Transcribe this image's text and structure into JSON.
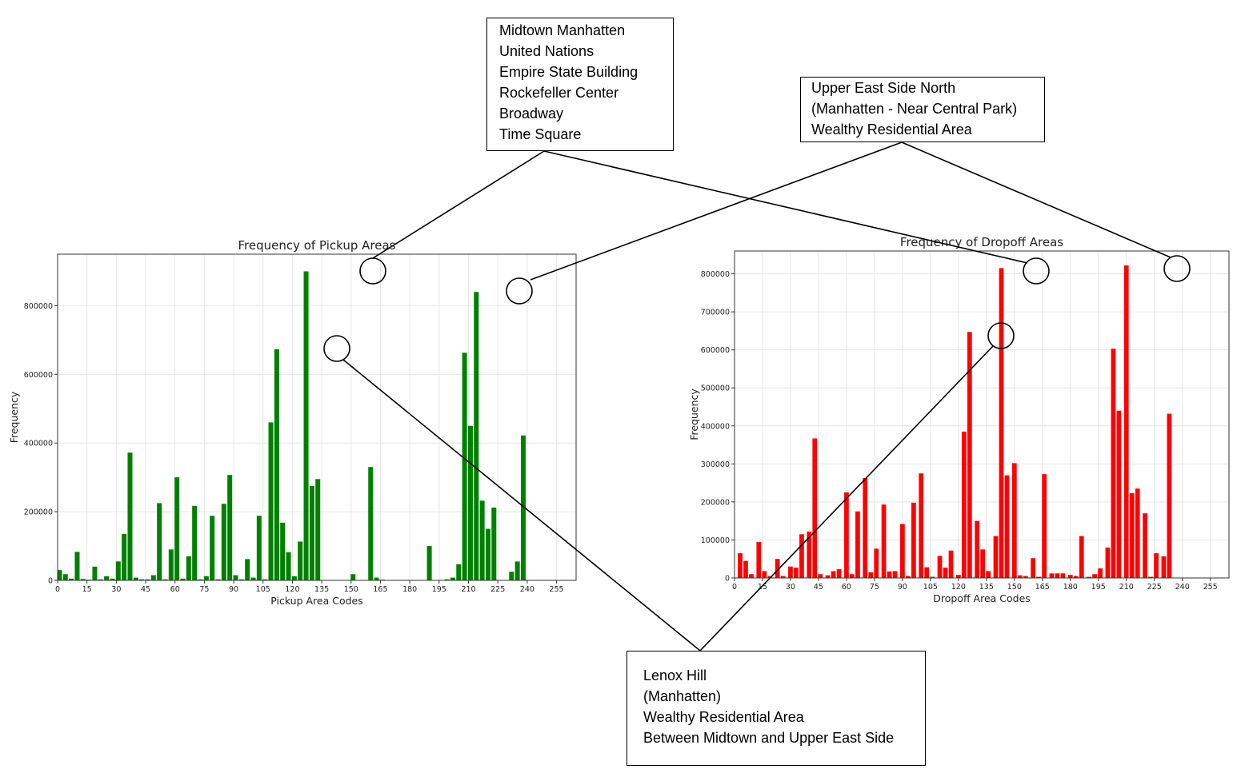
{
  "chart_data": [
    {
      "type": "bar",
      "title": "Frequency of Pickup Areas",
      "xlabel": "Pickup Area Codes",
      "ylabel": "Frequency",
      "xlim": [
        0,
        265
      ],
      "ylim": [
        0,
        950000
      ],
      "xticks": [
        0,
        15,
        30,
        45,
        60,
        75,
        90,
        105,
        120,
        135,
        150,
        165,
        180,
        195,
        210,
        225,
        240,
        255
      ],
      "yticks": [
        0,
        200000,
        400000,
        600000,
        800000
      ],
      "grid": true,
      "color": "#008000",
      "x": [
        1,
        4,
        7,
        10,
        13,
        16,
        19,
        22,
        25,
        28,
        31,
        34,
        37,
        40,
        43,
        46,
        49,
        52,
        55,
        58,
        61,
        64,
        67,
        70,
        73,
        76,
        79,
        82,
        85,
        88,
        91,
        94,
        97,
        100,
        103,
        106,
        109,
        112,
        115,
        118,
        121,
        124,
        127,
        130,
        133,
        136,
        139,
        142,
        145,
        148,
        151,
        154,
        157,
        160,
        163,
        166,
        169,
        172,
        175,
        178,
        181,
        184,
        187,
        190,
        193,
        196,
        199,
        202,
        205,
        208,
        211,
        214,
        217,
        220,
        223,
        226,
        229,
        232,
        235,
        238,
        241,
        244,
        247,
        250,
        253,
        256,
        259,
        262
      ],
      "values": [
        30000,
        18000,
        5000,
        83000,
        4000,
        2000,
        40000,
        3000,
        12000,
        5000,
        55000,
        135000,
        372000,
        8000,
        3000,
        3000,
        15000,
        225000,
        3000,
        90000,
        300000,
        5000,
        70000,
        217000,
        3000,
        12000,
        188000,
        3000,
        223000,
        307000,
        15000,
        3000,
        62000,
        8000,
        188000,
        3000,
        460000,
        673000,
        168000,
        82000,
        12000,
        113000,
        900000,
        275000,
        295000,
        0,
        0,
        0,
        0,
        0,
        18000,
        0,
        0,
        330000,
        8000,
        2000,
        0,
        0,
        0,
        0,
        0,
        0,
        0,
        100000,
        0,
        0,
        3000,
        8000,
        47000,
        663000,
        450000,
        840000,
        232000,
        150000,
        212000,
        0,
        0,
        25000,
        55000,
        422000,
        0,
        0,
        0,
        0,
        0,
        0,
        0,
        0
      ]
    },
    {
      "type": "bar",
      "title": "Frequency of Dropoff Areas",
      "xlabel": "Dropoff Area Codes",
      "ylabel": "Frequency",
      "xlim": [
        0,
        265
      ],
      "ylim": [
        0,
        860000
      ],
      "xticks": [
        0,
        15,
        30,
        45,
        60,
        75,
        90,
        105,
        120,
        135,
        150,
        165,
        180,
        195,
        210,
        225,
        240,
        255
      ],
      "yticks": [
        0,
        100000,
        200000,
        300000,
        400000,
        500000,
        600000,
        700000,
        800000
      ],
      "grid": true,
      "color": "#ff0000",
      "x": [
        3,
        6,
        9,
        13,
        16,
        19,
        23,
        26,
        30,
        33,
        36,
        40,
        43,
        46,
        50,
        53,
        56,
        60,
        63,
        66,
        70,
        73,
        76,
        80,
        83,
        86,
        90,
        93,
        96,
        100,
        103,
        106,
        110,
        113,
        116,
        120,
        123,
        126,
        130,
        133,
        136,
        140,
        143,
        146,
        150,
        153,
        156,
        160,
        163,
        166,
        170,
        173,
        176,
        180,
        183,
        186,
        190,
        193,
        196,
        200,
        203,
        206,
        210,
        213,
        216,
        220,
        223,
        226,
        230,
        233,
        236,
        240,
        243,
        246,
        250,
        253,
        256,
        260,
        263
      ],
      "values": [
        65000,
        45000,
        10000,
        95000,
        18000,
        5000,
        50000,
        5000,
        30000,
        27000,
        115000,
        122000,
        367000,
        10000,
        7000,
        18000,
        23000,
        225000,
        10000,
        175000,
        263000,
        15000,
        77000,
        193000,
        17000,
        18000,
        142000,
        5000,
        198000,
        275000,
        28000,
        3000,
        58000,
        27000,
        72000,
        8000,
        385000,
        647000,
        150000,
        75000,
        18000,
        110000,
        815000,
        270000,
        302000,
        7000,
        5000,
        52000,
        3000,
        273000,
        12000,
        12000,
        12000,
        8000,
        5000,
        110000,
        3000,
        10000,
        25000,
        80000,
        603000,
        440000,
        822000,
        223000,
        235000,
        170000,
        3000,
        65000,
        57000,
        432000,
        0,
        0,
        0,
        0,
        0,
        0,
        0,
        0,
        0
      ]
    }
  ],
  "callouts": {
    "midtown": [
      "Midtown Manhatten",
      "United Nations",
      "Empire State Building",
      "Rockefeller Center",
      "Broadway",
      "Time Square"
    ],
    "upper_east": [
      "Upper East Side North",
      "(Manhatten - Near Central Park)",
      "Wealthy Residential Area"
    ],
    "lenox": [
      "Lenox Hill",
      "(Manhatten)",
      "Wealthy Residential Area",
      "Between Midtown and Upper East Side"
    ]
  }
}
